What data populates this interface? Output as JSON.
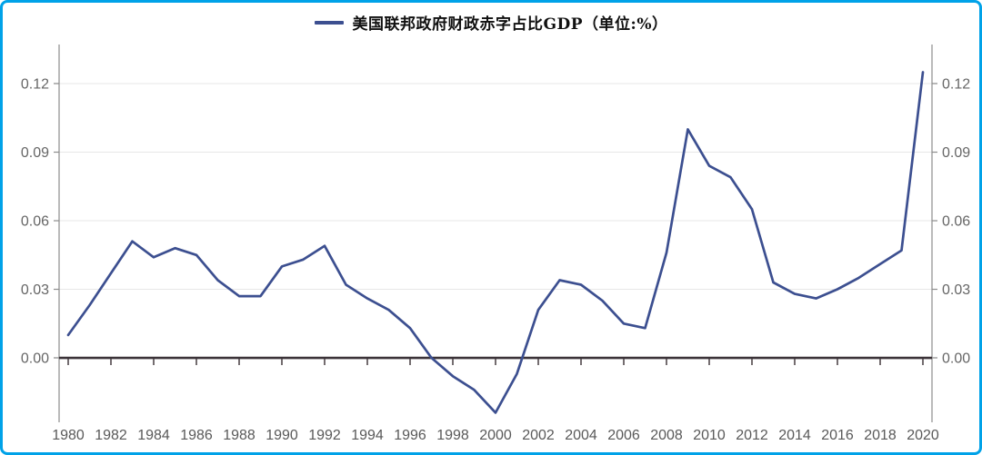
{
  "frame": {
    "border_color": "#00a2e8",
    "background_color": "#ffffff"
  },
  "legend": {
    "label": "美国联邦政府财政赤字占比GDP（单位:%）",
    "swatch_color": "#3c4f90"
  },
  "chart_data": {
    "type": "line",
    "title": "美国联邦政府财政赤字占比GDP（单位:%）",
    "series_name": "美国联邦政府财政赤字占比GDP（单位:%）",
    "x": [
      1980,
      1981,
      1982,
      1983,
      1984,
      1985,
      1986,
      1987,
      1988,
      1989,
      1990,
      1991,
      1992,
      1993,
      1994,
      1995,
      1996,
      1997,
      1998,
      1999,
      2000,
      2001,
      2002,
      2003,
      2004,
      2005,
      2006,
      2007,
      2008,
      2009,
      2010,
      2011,
      2012,
      2013,
      2014,
      2015,
      2016,
      2017,
      2018,
      2019,
      2020
    ],
    "values": [
      0.01,
      0.023,
      0.037,
      0.051,
      0.044,
      0.048,
      0.045,
      0.034,
      0.027,
      0.027,
      0.04,
      0.043,
      0.049,
      0.032,
      0.026,
      0.021,
      0.013,
      0.0,
      -0.008,
      -0.014,
      -0.024,
      -0.007,
      0.021,
      0.034,
      0.032,
      0.025,
      0.015,
      0.013,
      0.046,
      0.1,
      0.084,
      0.079,
      0.065,
      0.033,
      0.028,
      0.026,
      0.03,
      0.035,
      0.041,
      0.047,
      0.125
    ],
    "xticks": [
      1980,
      1982,
      1984,
      1986,
      1988,
      1990,
      1992,
      1994,
      1996,
      1998,
      2000,
      2002,
      2004,
      2006,
      2008,
      2010,
      2012,
      2014,
      2016,
      2018,
      2020
    ],
    "xtick_labels": [
      "1980",
      "1982",
      "1984",
      "1986",
      "1988",
      "1990",
      "1992",
      "1994",
      "1996",
      "1998",
      "2000",
      "2002",
      "2004",
      "2006",
      "2008",
      "2010",
      "2012",
      "2014",
      "2016",
      "2018",
      "2020"
    ],
    "yticks": [
      0.0,
      0.03,
      0.06,
      0.09,
      0.12
    ],
    "ytick_labels": [
      "0.00",
      "0.03",
      "0.06",
      "0.09",
      "0.12"
    ],
    "ylim": [
      -0.0282,
      0.1371
    ],
    "grid": true,
    "legend_position": "top-center",
    "colors": {
      "line": "#3c4f90",
      "zero_line": "#3b3338",
      "grid": "#e7e7e7",
      "axis": "#8c8c8c",
      "tick": "#453c40",
      "label": "#666666"
    }
  }
}
